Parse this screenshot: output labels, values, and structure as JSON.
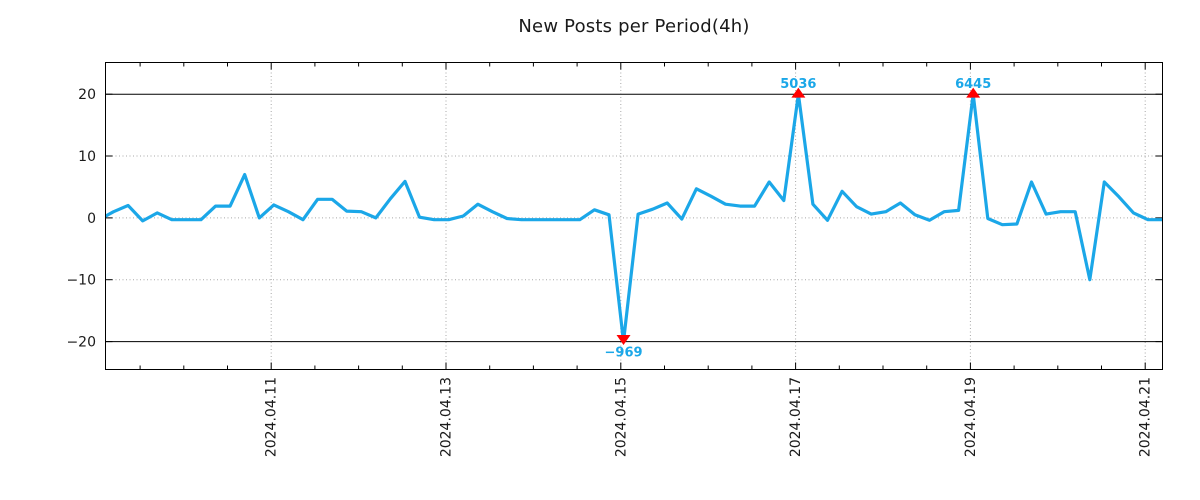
{
  "chart_data": {
    "type": "line",
    "title": "New Posts per Period(4h)",
    "period_hours": 4,
    "x_tick_labels": [
      "2024.04.11",
      "2024.04.13",
      "2024.04.15",
      "2024.04.17",
      "2024.04.19",
      "2024.04.21"
    ],
    "y_ticks": [
      20,
      10,
      0,
      -10,
      -20
    ],
    "y_tick_labels": [
      "20",
      "10",
      "0",
      "−10",
      "−20"
    ],
    "ylim": [
      -24.6,
      25.2
    ],
    "grid": "dotted, horizontal at -10/0/10 and vertical at date ticks",
    "threshold_lines": [
      20,
      -20
    ],
    "clip_threshold": 20,
    "values": [
      -0.3,
      1.0,
      2.0,
      -0.5,
      0.8,
      -0.3,
      -0.3,
      -0.3,
      1.9,
      1.9,
      7.0,
      0.0,
      2.1,
      1.0,
      -0.3,
      3.0,
      3.0,
      1.1,
      1.0,
      0.0,
      3.1,
      5.9,
      0.1,
      -0.3,
      -0.3,
      0.3,
      2.2,
      1.0,
      -0.1,
      -0.3,
      -0.3,
      -0.3,
      -0.3,
      -0.3,
      1.3,
      0.5,
      -20,
      0.6,
      1.4,
      2.4,
      -0.2,
      4.7,
      3.5,
      2.2,
      1.9,
      1.9,
      5.8,
      2.8,
      20,
      2.2,
      -0.4,
      4.3,
      1.8,
      0.6,
      1.0,
      2.4,
      0.5,
      -0.4,
      1.0,
      1.2,
      20,
      -0.1,
      -1.1,
      -1.0,
      5.8,
      0.6,
      1.0,
      1.0,
      -10.0,
      5.8,
      3.4,
      0.8,
      -0.3,
      -0.3,
      -0.3
    ],
    "annotations": [
      {
        "index": 36,
        "label": "−969",
        "actual": -969,
        "direction": "down"
      },
      {
        "index": 48,
        "label": "5036",
        "actual": 5036,
        "direction": "up"
      },
      {
        "index": 60,
        "label": "6445",
        "actual": 6445,
        "direction": "up"
      }
    ],
    "colors": {
      "line": "#1ba7e8",
      "annotation_text": "#1ba7e8",
      "marker": "#ff0000",
      "grid": "#a8a8a8",
      "axis": "#000000",
      "text": "#1a1a1a"
    },
    "legend": "none"
  }
}
